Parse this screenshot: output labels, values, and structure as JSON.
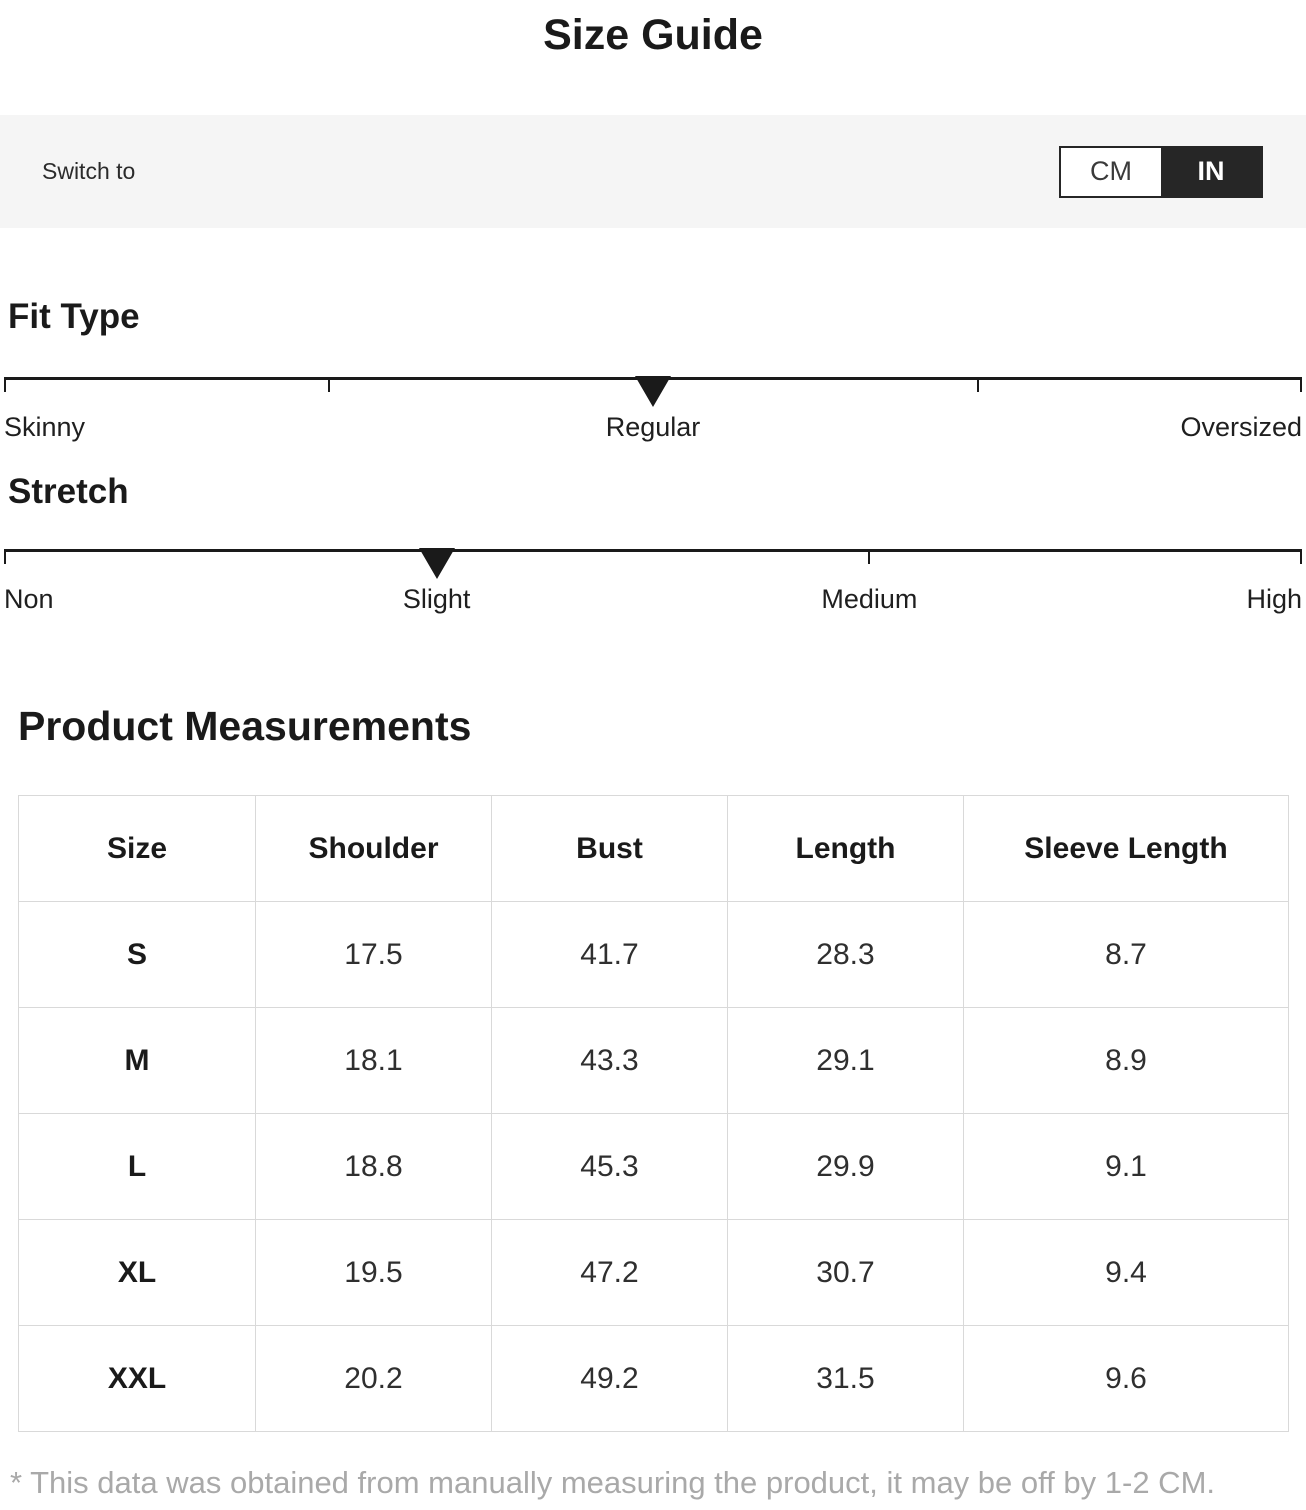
{
  "title": "Size Guide",
  "unit_bar": {
    "label": "Switch to",
    "cm_label": "CM",
    "in_label": "IN",
    "selected_unit": "IN"
  },
  "sliders": [
    {
      "title": "Fit Type",
      "labels": [
        "Skinny",
        "Regular",
        "Oversized"
      ],
      "label_pct": [
        0,
        50,
        100
      ],
      "ticks_pct": [
        0,
        25,
        50,
        75,
        100
      ],
      "marker_pct": 50,
      "selected": "Regular"
    },
    {
      "title": "Stretch",
      "labels": [
        "Non",
        "Slight",
        "Medium",
        "High"
      ],
      "label_pct": [
        0,
        33.33,
        66.67,
        100
      ],
      "ticks_pct": [
        0,
        33.33,
        66.67,
        100
      ],
      "marker_pct": 33.33,
      "selected": "Slight"
    }
  ],
  "measurements": {
    "title": "Product Measurements",
    "columns": [
      "Size",
      "Shoulder",
      "Bust",
      "Length",
      "Sleeve Length"
    ],
    "rows": [
      {
        "size": "S",
        "values": [
          "17.5",
          "41.7",
          "28.3",
          "8.7"
        ]
      },
      {
        "size": "M",
        "values": [
          "18.1",
          "43.3",
          "29.1",
          "8.9"
        ]
      },
      {
        "size": "L",
        "values": [
          "18.8",
          "45.3",
          "29.9",
          "9.1"
        ]
      },
      {
        "size": "XL",
        "values": [
          "19.5",
          "47.2",
          "30.7",
          "9.4"
        ]
      },
      {
        "size": "XXL",
        "values": [
          "20.2",
          "49.2",
          "31.5",
          "9.6"
        ]
      }
    ]
  },
  "footnote": "* This data was obtained from manually measuring the product, it may be off by 1-2 CM.",
  "colors": {
    "accent_dark": "#262626",
    "bar_background": "#f5f5f5",
    "table_border": "#d9d9d9",
    "footnote_gray": "#a9a9a9"
  }
}
